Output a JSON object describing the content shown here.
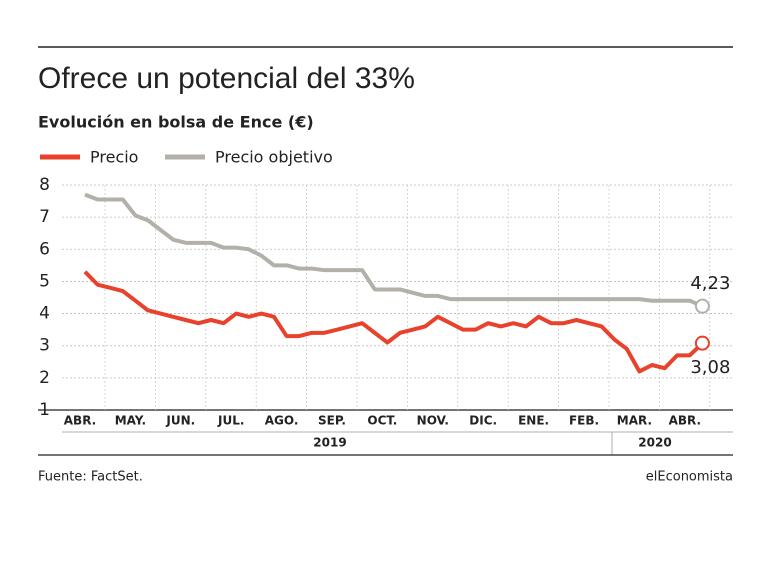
{
  "chart_data": {
    "type": "line",
    "title": "Ofrece un potencial del 33%",
    "subtitle": "Evolución en bolsa de Ence (€)",
    "categories": [
      "ABR.",
      null,
      null,
      null,
      "MAY.",
      null,
      null,
      null,
      "JUN.",
      null,
      null,
      null,
      "JUL.",
      null,
      null,
      null,
      "AGO.",
      null,
      null,
      null,
      "SEP.",
      null,
      null,
      null,
      "OCT.",
      null,
      null,
      null,
      "NOV.",
      null,
      null,
      null,
      "DIC.",
      null,
      null,
      null,
      "ENE.",
      null,
      null,
      null,
      "FEB.",
      null,
      null,
      null,
      "MAR.",
      null,
      null,
      null,
      "ABR.",
      null
    ],
    "year_labels": [
      "2019",
      "2020"
    ],
    "series": [
      {
        "name": "Precio",
        "color": "#e8412c",
        "values": [
          5.3,
          4.9,
          4.8,
          4.7,
          4.4,
          4.1,
          4.0,
          3.9,
          3.8,
          3.7,
          3.8,
          3.7,
          4.0,
          3.9,
          4.0,
          3.9,
          3.3,
          3.3,
          3.4,
          3.4,
          3.5,
          3.6,
          3.7,
          3.4,
          3.1,
          3.4,
          3.5,
          3.6,
          3.9,
          3.7,
          3.5,
          3.5,
          3.7,
          3.6,
          3.7,
          3.6,
          3.9,
          3.7,
          3.7,
          3.8,
          3.7,
          3.6,
          3.2,
          2.9,
          2.2,
          2.4,
          2.3,
          2.7,
          2.7,
          3.08
        ],
        "value_labels": [
          null,
          null,
          null,
          null,
          null,
          null,
          null,
          null,
          null,
          null,
          null,
          null,
          null,
          null,
          null,
          null,
          null,
          null,
          null,
          null,
          null,
          null,
          null,
          null,
          null,
          null,
          null,
          null,
          null,
          null,
          null,
          null,
          null,
          null,
          null,
          null,
          null,
          null,
          null,
          null,
          null,
          null,
          null,
          null,
          null,
          null,
          null,
          null,
          null,
          "3,08"
        ]
      },
      {
        "name": "Precio objetivo",
        "color": "#b3b0aa",
        "values": [
          7.7,
          7.55,
          7.55,
          7.55,
          7.05,
          6.9,
          6.6,
          6.3,
          6.2,
          6.2,
          6.2,
          6.05,
          6.05,
          6.0,
          5.8,
          5.5,
          5.5,
          5.4,
          5.4,
          5.35,
          5.35,
          5.35,
          5.35,
          4.75,
          4.75,
          4.75,
          4.65,
          4.55,
          4.55,
          4.45,
          4.45,
          4.45,
          4.45,
          4.45,
          4.45,
          4.45,
          4.45,
          4.45,
          4.45,
          4.45,
          4.45,
          4.45,
          4.45,
          4.45,
          4.45,
          4.4,
          4.4,
          4.4,
          4.4,
          4.23
        ],
        "value_labels": [
          null,
          null,
          null,
          null,
          null,
          null,
          null,
          null,
          null,
          null,
          null,
          null,
          null,
          null,
          null,
          null,
          null,
          null,
          null,
          null,
          null,
          null,
          null,
          null,
          null,
          null,
          null,
          null,
          null,
          null,
          null,
          null,
          null,
          null,
          null,
          null,
          null,
          null,
          null,
          null,
          null,
          null,
          null,
          null,
          null,
          null,
          null,
          null,
          null,
          "4,23"
        ]
      }
    ],
    "ylim": [
      1,
      8
    ],
    "yticks": [
      1,
      2,
      3,
      4,
      5,
      6,
      7,
      8
    ],
    "grid": true,
    "source": "Fuente: FactSet.",
    "brand": "elEconomista"
  }
}
